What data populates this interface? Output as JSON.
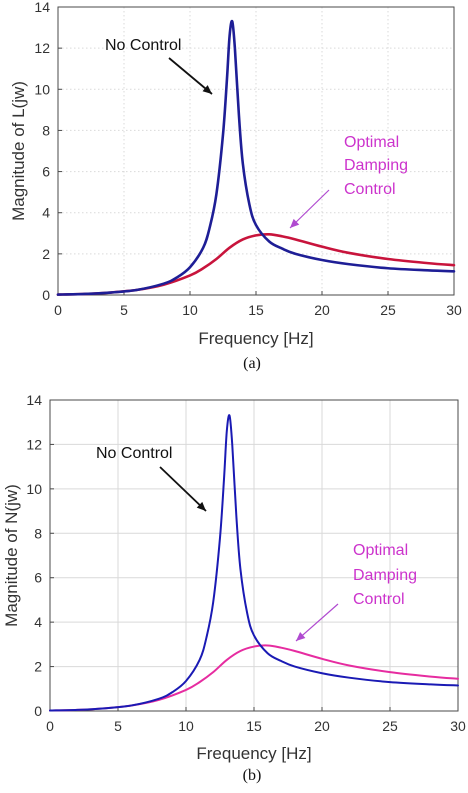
{
  "chart_data": [
    {
      "type": "line",
      "xlabel": "Frequency [Hz]",
      "ylabel": "Magnitude of L(jw)",
      "caption": "(a)",
      "xlim": [
        0,
        30
      ],
      "ylim": [
        0,
        14
      ],
      "xticks": [
        0,
        5,
        10,
        15,
        20,
        25,
        30
      ],
      "yticks": [
        0,
        2,
        4,
        6,
        8,
        10,
        12,
        14
      ],
      "grid": "dotted",
      "colors": {
        "no_control": "#1e1e96",
        "optimal": "#c8143c"
      },
      "series": [
        {
          "x": [
            0,
            2,
            4,
            6,
            8,
            9,
            10,
            11,
            11.5,
            12,
            12.5,
            12.8,
            13,
            13.2,
            13.4,
            13.7,
            14,
            14.5,
            15,
            16,
            17,
            18,
            20,
            22,
            25,
            28,
            30
          ],
          "values": [
            0.02,
            0.05,
            0.12,
            0.25,
            0.55,
            0.85,
            1.35,
            2.3,
            3.3,
            4.9,
            7.8,
            10.5,
            12.6,
            13.3,
            12.0,
            8.8,
            6.4,
            4.4,
            3.4,
            2.6,
            2.25,
            2.0,
            1.7,
            1.5,
            1.3,
            1.2,
            1.15
          ]
        },
        {
          "x": [
            0,
            2,
            4,
            6,
            8,
            10,
            11,
            12,
            13,
            14,
            15,
            16,
            17,
            18,
            20,
            22,
            25,
            28,
            30
          ],
          "values": [
            0.02,
            0.05,
            0.12,
            0.25,
            0.5,
            0.95,
            1.3,
            1.75,
            2.3,
            2.7,
            2.9,
            2.95,
            2.85,
            2.7,
            2.35,
            2.05,
            1.75,
            1.55,
            1.45
          ]
        }
      ],
      "annotations": [
        {
          "text": "No Control",
          "color": "#111111"
        },
        {
          "text": "Optimal",
          "color": "#cc33cc"
        },
        {
          "text": "Damping",
          "color": "#cc33cc"
        },
        {
          "text": "Control",
          "color": "#cc33cc"
        }
      ]
    },
    {
      "type": "line",
      "xlabel": "Frequency [Hz]",
      "ylabel": "Magnitude of N(jw)",
      "caption": "(b)",
      "xlim": [
        0,
        30
      ],
      "ylim": [
        0,
        14
      ],
      "xticks": [
        0,
        5,
        10,
        15,
        20,
        25,
        30
      ],
      "yticks": [
        0,
        2,
        4,
        6,
        8,
        10,
        12,
        14
      ],
      "grid": "solid",
      "colors": {
        "no_control": "#1a1ab4",
        "optimal": "#e62ca0"
      },
      "series": [
        {
          "x": [
            0,
            2,
            4,
            6,
            8,
            9,
            10,
            11,
            11.5,
            12,
            12.5,
            12.8,
            13,
            13.2,
            13.4,
            13.7,
            14,
            14.5,
            15,
            16,
            17,
            18,
            20,
            22,
            25,
            28,
            30
          ],
          "values": [
            0.02,
            0.05,
            0.12,
            0.25,
            0.55,
            0.85,
            1.35,
            2.3,
            3.3,
            4.9,
            7.8,
            10.5,
            12.6,
            13.3,
            12.0,
            8.8,
            6.4,
            4.4,
            3.4,
            2.6,
            2.25,
            2.0,
            1.7,
            1.5,
            1.3,
            1.2,
            1.15
          ]
        },
        {
          "x": [
            0,
            2,
            4,
            6,
            8,
            10,
            11,
            12,
            13,
            14,
            15,
            16,
            17,
            18,
            20,
            22,
            25,
            28,
            30
          ],
          "values": [
            0.02,
            0.05,
            0.12,
            0.25,
            0.5,
            0.95,
            1.3,
            1.75,
            2.3,
            2.7,
            2.9,
            2.95,
            2.85,
            2.7,
            2.35,
            2.05,
            1.75,
            1.55,
            1.45
          ]
        }
      ],
      "annotations": [
        {
          "text": "No Control",
          "color": "#111111"
        },
        {
          "text": "Optimal",
          "color": "#cc33cc"
        },
        {
          "text": "Damping",
          "color": "#cc33cc"
        },
        {
          "text": "Control",
          "color": "#cc33cc"
        }
      ]
    }
  ]
}
